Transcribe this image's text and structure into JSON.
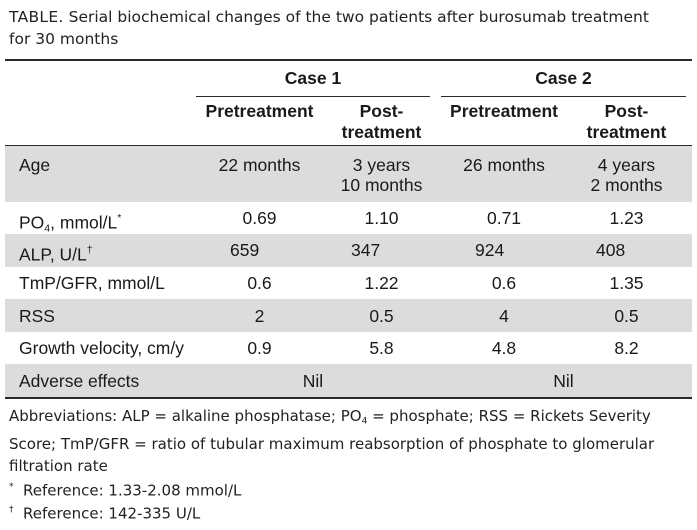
{
  "caption": {
    "lead": "TABLE.",
    "text": "Serial biochemical changes of the two patients after burosumab treatment",
    "text2": "for 30 months"
  },
  "table": {
    "groups": [
      "Case 1",
      "Case 2"
    ],
    "subheaders": [
      {
        "line1": "Pretreatment",
        "line2": ""
      },
      {
        "line1": "Post-",
        "line2": "treatment"
      },
      {
        "line1": "Pretreatment",
        "line2": ""
      },
      {
        "line1": "Post-",
        "line2": "treatment"
      }
    ],
    "rows": [
      {
        "label": "Age",
        "values": [
          [
            "22 months"
          ],
          [
            "3 years",
            "10 months"
          ],
          [
            "26 months"
          ],
          [
            "4 years",
            "2 months"
          ]
        ]
      },
      {
        "label_main": "PO",
        "label_sub": "4",
        "label_rest": ", mmol/L",
        "label_mark": "*",
        "values": [
          "0.69",
          "1.10",
          "0.71",
          "1.23"
        ]
      },
      {
        "label_main": "ALP, U/L",
        "label_mark": "†",
        "values": [
          "659",
          "347",
          "924",
          "408"
        ]
      },
      {
        "label": "TmP/GFR, mmol/L",
        "values": [
          "0.6",
          "1.22",
          "0.6",
          "1.35"
        ]
      },
      {
        "label": "RSS",
        "values": [
          "2",
          "0.5",
          "4",
          "0.5"
        ]
      },
      {
        "label": "Growth velocity, cm/y",
        "values": [
          "0.9",
          "5.8",
          "4.8",
          "8.2"
        ]
      },
      {
        "label": "Adverse effects",
        "merged": [
          "Nil",
          "Nil"
        ]
      }
    ]
  },
  "footnotes": {
    "abbrev_1": "Abbreviations: ALP = alkaline phosphatase; PO",
    "abbrev_sub": "4",
    "abbrev_2": " = phosphate; RSS = Rickets Severity",
    "abbrev_3": "Score; TmP/GFR = ratio of tubular maximum reabsorption of phosphate to glomerular",
    "abbrev_4": "filtration rate",
    "ref1_mark": "*",
    "ref1_text": "Reference: 1.33-2.08 mmol/L",
    "ref2_mark": "†",
    "ref2_text": "Reference: 142-335 U/L"
  }
}
